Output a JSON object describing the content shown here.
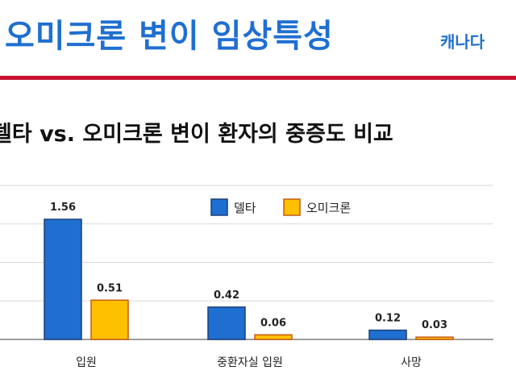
{
  "header": {
    "title": "오미크론 변이 임상특성",
    "country": "캐나다"
  },
  "subtitle": "델타 vs. 오미크론 변이 환자의 중증도 비교",
  "colors": {
    "title": "#1f6fd1",
    "rule": "#c8102e",
    "delta": "#1f6fd1",
    "omicron": "#ffc000"
  },
  "chart_data": {
    "type": "bar",
    "categories": [
      "입원",
      "중환자실 입원",
      "사망"
    ],
    "series": [
      {
        "name": "델타",
        "values": [
          1.56,
          0.42,
          0.12
        ],
        "color": "#1f6fd1",
        "border": "#1a3f7a"
      },
      {
        "name": "오미크론",
        "values": [
          0.51,
          0.06,
          0.03
        ],
        "color": "#ffc000",
        "border": "#c55a11"
      }
    ],
    "ylim": [
      0,
      2.0
    ],
    "grid": true,
    "legend": "top-center",
    "data_labels": [
      "1.56",
      "0.51",
      "0.42",
      "0.06",
      "0.12",
      "0.03"
    ]
  }
}
